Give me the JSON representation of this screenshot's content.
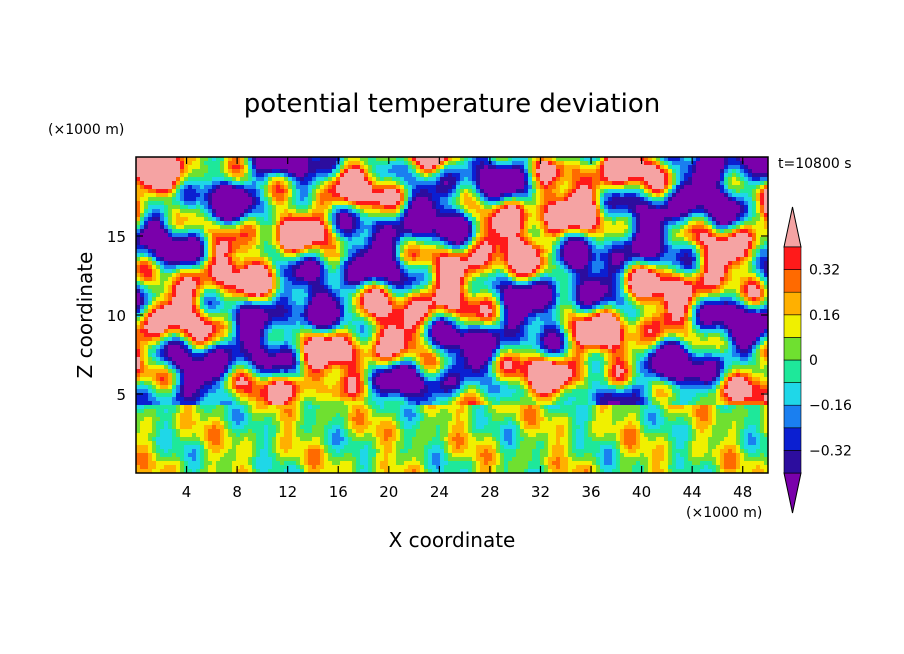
{
  "chart_data": {
    "type": "heatmap",
    "title": "potential temperature deviation",
    "xlabel": "X coordinate",
    "ylabel": "Z coordinate",
    "x_unit": "(×1000 m)",
    "y_unit": "(×1000 m)",
    "time_label": "t=10800 s",
    "xlim": [
      0,
      50
    ],
    "ylim": [
      0,
      20
    ],
    "x_ticks": [
      4,
      8,
      12,
      16,
      20,
      24,
      28,
      32,
      36,
      40,
      44,
      48
    ],
    "y_ticks": [
      5,
      10,
      15
    ],
    "colorbar": {
      "levels": [
        -0.4,
        -0.32,
        -0.24,
        -0.16,
        -0.08,
        0,
        0.08,
        0.16,
        0.24,
        0.32,
        0.4
      ],
      "tick_values": [
        -0.32,
        -0.16,
        0,
        0.16,
        0.32
      ],
      "tick_labels": [
        "−0.32",
        "−0.16",
        "0",
        "0.16",
        "0.32"
      ],
      "colors": [
        "#7a00ab",
        "#2c0d9e",
        "#0b1fd1",
        "#1a7ff0",
        "#1fd7e8",
        "#1ee89a",
        "#6fe030",
        "#f0f000",
        "#ffb000",
        "#ff6a00",
        "#ff1a1a",
        "#f5a3a3"
      ],
      "extend": "both"
    }
  }
}
